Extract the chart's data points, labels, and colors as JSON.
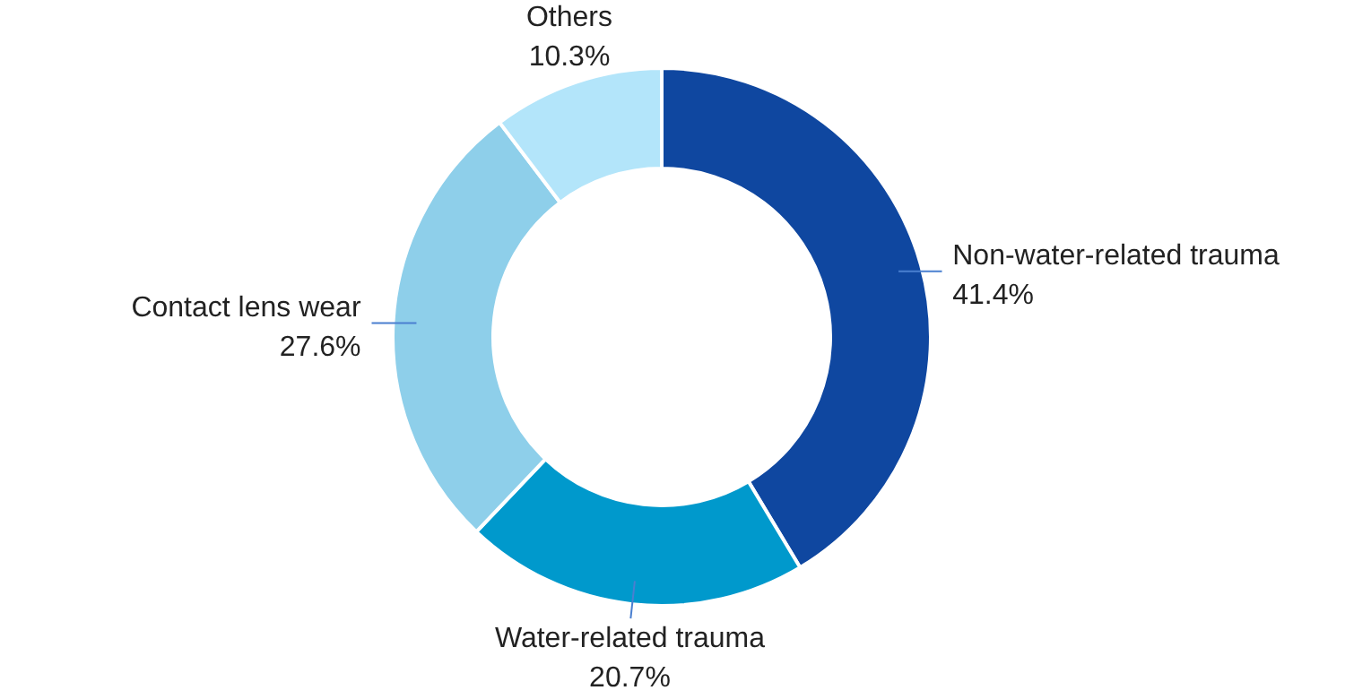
{
  "chart_data": {
    "type": "donut",
    "categories": [
      "Non-water-related trauma",
      "Water-related trauma",
      "Contact lens wear",
      "Others"
    ],
    "values": [
      41.4,
      20.7,
      27.6,
      10.3
    ],
    "colors": [
      "#0f47a0",
      "#0099cc",
      "#8ecfea",
      "#b3e5fa"
    ],
    "value_labels": [
      "41.4%",
      "20.7%",
      "27.6%",
      "10.3%"
    ]
  }
}
